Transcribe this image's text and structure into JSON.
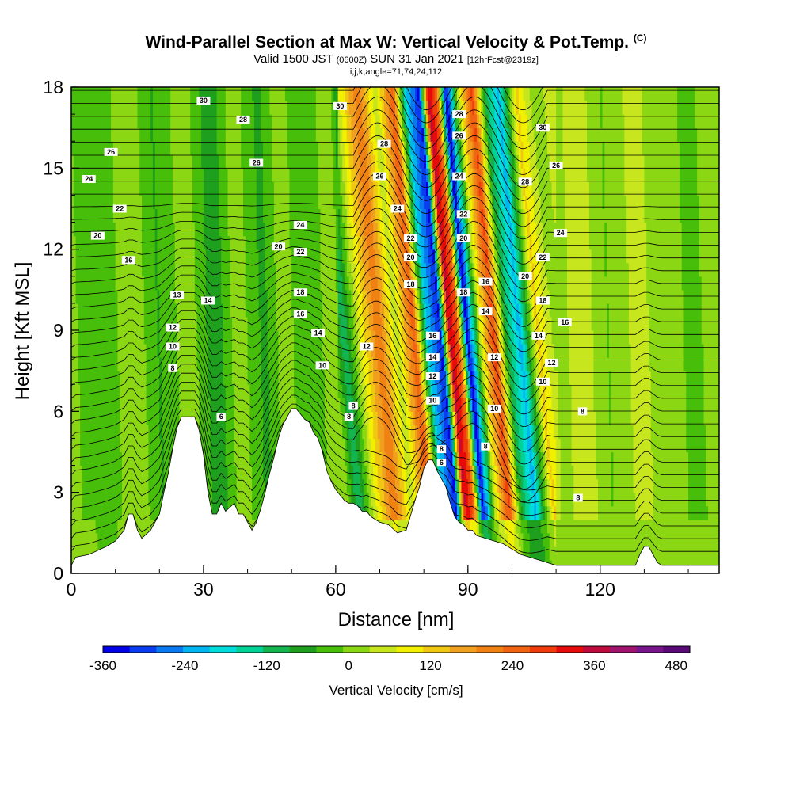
{
  "title": {
    "main": "Wind-Parallel Section at Max W: Vertical Velocity & Pot.Temp.",
    "copyright": "(C)",
    "valid_prefix": "Valid 1500 JST",
    "valid_utc": "(0600Z)",
    "valid_date": "SUN 31 Jan 2021",
    "forecast": "[12hrFcst@2319z]",
    "section_info": "i,j,k,angle=71,74,24,112"
  },
  "chart_data": {
    "type": "heatmap",
    "xlabel": "Distance [nm]",
    "ylabel": "Height [Kft MSL]",
    "xlim": [
      0,
      147
    ],
    "ylim": [
      0,
      18
    ],
    "x_ticks": [
      0,
      30,
      60,
      90,
      120
    ],
    "y_ticks": [
      0,
      3,
      6,
      9,
      12,
      15,
      18
    ],
    "x_tick_labels": [
      "0",
      "30",
      "60",
      "90",
      "120"
    ],
    "y_tick_labels": [
      "0",
      "3",
      "6",
      "9",
      "12",
      "15",
      "18"
    ],
    "colorbar": {
      "title": "Vertical Velocity [cm/s]",
      "min": -360,
      "max": 500,
      "tick_values": [
        -360,
        -240,
        -120,
        0,
        120,
        240,
        360,
        480
      ],
      "tick_labels": [
        "-360",
        "-240",
        "-120",
        "0",
        "120",
        "240",
        "360",
        "480"
      ],
      "colors": [
        "#0000e6",
        "#0a3cf0",
        "#0a78f0",
        "#00b4f0",
        "#00dcdc",
        "#00d296",
        "#14b450",
        "#1ea01e",
        "#46be0a",
        "#8cd714",
        "#c8e61e",
        "#f0f000",
        "#f0c814",
        "#f0a01e",
        "#f08214",
        "#f06414",
        "#f03c0a",
        "#e60a0a",
        "#be0a3c",
        "#a0146e",
        "#78148c",
        "#5a0a78"
      ]
    },
    "vertical_velocity_bands": [
      {
        "x": 0,
        "w": 0
      },
      {
        "x": 8,
        "w": -40
      },
      {
        "x": 14,
        "w": 30
      },
      {
        "x": 20,
        "w": -50
      },
      {
        "x": 27,
        "w": 20
      },
      {
        "x": 33,
        "w": -80
      },
      {
        "x": 38,
        "w": 20
      },
      {
        "x": 44,
        "w": -60
      },
      {
        "x": 48,
        "w": 10
      },
      {
        "x": 55,
        "w": -40
      },
      {
        "x": 60,
        "w": 30
      },
      {
        "x": 63,
        "w": -120
      },
      {
        "x": 67,
        "w": 80
      },
      {
        "x": 71,
        "w": 220
      },
      {
        "x": 75,
        "w": 40
      },
      {
        "x": 79,
        "w": 260
      },
      {
        "x": 82,
        "w": -200
      },
      {
        "x": 85,
        "w": -330
      },
      {
        "x": 87,
        "w": 360
      },
      {
        "x": 89,
        "w": 250
      },
      {
        "x": 91,
        "w": -360
      },
      {
        "x": 94,
        "w": 60
      },
      {
        "x": 97,
        "w": 280
      },
      {
        "x": 100,
        "w": -100
      },
      {
        "x": 103,
        "w": -220
      },
      {
        "x": 107,
        "w": 120
      },
      {
        "x": 111,
        "w": 10
      },
      {
        "x": 116,
        "w": 60
      },
      {
        "x": 122,
        "w": -10
      },
      {
        "x": 128,
        "w": 40
      },
      {
        "x": 135,
        "w": 20
      },
      {
        "x": 141,
        "w": -20
      },
      {
        "x": 147,
        "w": 10
      }
    ],
    "terrain": {
      "x": [
        0,
        1,
        4,
        8,
        10,
        12,
        13,
        14,
        15,
        16,
        18,
        20,
        21,
        22,
        23,
        24,
        25,
        28,
        29,
        30,
        31,
        32,
        33,
        34,
        35,
        37,
        38,
        39,
        40,
        41,
        42,
        43,
        44,
        45,
        46,
        47,
        48,
        49,
        50,
        51,
        52,
        53,
        54,
        55,
        56,
        57,
        58,
        59,
        60,
        61,
        62,
        63,
        64,
        65,
        66,
        67,
        68,
        70,
        72,
        74,
        76,
        78,
        79,
        80,
        81,
        82,
        83,
        84,
        85,
        86,
        87,
        88,
        89,
        90,
        91,
        92,
        94,
        96,
        98,
        100,
        102,
        104,
        106,
        108,
        110,
        114,
        118,
        122,
        126,
        128,
        129,
        130,
        131,
        132,
        133,
        134,
        135,
        136,
        140,
        147
      ],
      "h": [
        0.3,
        0.6,
        0.7,
        1.0,
        1.2,
        1.6,
        2.2,
        2.2,
        1.6,
        1.3,
        1.6,
        2.2,
        3.0,
        3.7,
        4.6,
        5.4,
        5.8,
        5.8,
        5.3,
        4.4,
        3.0,
        2.2,
        2.2,
        2.6,
        2.3,
        2.6,
        2.2,
        2.2,
        1.9,
        1.6,
        1.9,
        2.4,
        3.0,
        3.7,
        4.3,
        5.0,
        5.5,
        5.8,
        6.1,
        6.1,
        5.9,
        5.7,
        5.6,
        5.2,
        5.0,
        4.5,
        3.8,
        3.4,
        3.1,
        2.9,
        2.7,
        2.6,
        2.6,
        2.5,
        2.3,
        2.3,
        2.1,
        1.9,
        1.8,
        1.5,
        1.6,
        2.7,
        3.2,
        3.9,
        4.2,
        4.2,
        3.8,
        3.5,
        3.2,
        2.6,
        2.1,
        1.9,
        1.8,
        1.6,
        1.6,
        1.4,
        1.3,
        1.2,
        1.1,
        0.9,
        0.7,
        0.6,
        0.5,
        0.4,
        0.3,
        0.3,
        0.3,
        0.3,
        0.3,
        0.3,
        0.7,
        1.0,
        1.0,
        0.7,
        0.4,
        0.3,
        0.3,
        0.3,
        0.3,
        0.3
      ]
    },
    "theta_contours": [
      {
        "label": "6",
        "x": 34,
        "y": 5.8
      },
      {
        "label": "8",
        "x": 23,
        "y": 7.6
      },
      {
        "label": "10",
        "x": 23,
        "y": 8.4
      },
      {
        "label": "12",
        "x": 23,
        "y": 9.1
      },
      {
        "label": "13",
        "x": 24,
        "y": 10.3
      },
      {
        "label": "14",
        "x": 31,
        "y": 10.1
      },
      {
        "label": "16",
        "x": 13,
        "y": 11.6
      },
      {
        "label": "20",
        "x": 6,
        "y": 12.5
      },
      {
        "label": "22",
        "x": 11,
        "y": 13.5
      },
      {
        "label": "24",
        "x": 4,
        "y": 14.6
      },
      {
        "label": "26",
        "x": 9,
        "y": 15.6
      },
      {
        "label": "26",
        "x": 42,
        "y": 15.2
      },
      {
        "label": "28",
        "x": 39,
        "y": 16.8
      },
      {
        "label": "30",
        "x": 30,
        "y": 17.5
      },
      {
        "label": "30",
        "x": 61,
        "y": 17.3
      },
      {
        "label": "20",
        "x": 47,
        "y": 12.1
      },
      {
        "label": "22",
        "x": 52,
        "y": 11.9
      },
      {
        "label": "24",
        "x": 52,
        "y": 12.9
      },
      {
        "label": "18",
        "x": 52,
        "y": 10.4
      },
      {
        "label": "16",
        "x": 52,
        "y": 9.6
      },
      {
        "label": "14",
        "x": 56,
        "y": 8.9
      },
      {
        "label": "10",
        "x": 57,
        "y": 7.7
      },
      {
        "label": "8",
        "x": 64,
        "y": 6.2
      },
      {
        "label": "8",
        "x": 63,
        "y": 5.8
      },
      {
        "label": "12",
        "x": 67,
        "y": 8.4
      },
      {
        "label": "28",
        "x": 71,
        "y": 15.9
      },
      {
        "label": "26",
        "x": 70,
        "y": 14.7
      },
      {
        "label": "24",
        "x": 74,
        "y": 13.5
      },
      {
        "label": "22",
        "x": 77,
        "y": 12.4
      },
      {
        "label": "20",
        "x": 77,
        "y": 11.7
      },
      {
        "label": "18",
        "x": 77,
        "y": 10.7
      },
      {
        "label": "16",
        "x": 82,
        "y": 8.8
      },
      {
        "label": "14",
        "x": 82,
        "y": 8.0
      },
      {
        "label": "12",
        "x": 82,
        "y": 7.3
      },
      {
        "label": "10",
        "x": 82,
        "y": 6.4
      },
      {
        "label": "8",
        "x": 84,
        "y": 4.6
      },
      {
        "label": "6",
        "x": 84,
        "y": 4.1
      },
      {
        "label": "28",
        "x": 88,
        "y": 17.0
      },
      {
        "label": "26",
        "x": 88,
        "y": 16.2
      },
      {
        "label": "24",
        "x": 88,
        "y": 14.7
      },
      {
        "label": "22",
        "x": 89,
        "y": 13.3
      },
      {
        "label": "20",
        "x": 89,
        "y": 12.4
      },
      {
        "label": "18",
        "x": 89,
        "y": 10.4
      },
      {
        "label": "16",
        "x": 94,
        "y": 10.8
      },
      {
        "label": "14",
        "x": 94,
        "y": 9.7
      },
      {
        "label": "12",
        "x": 96,
        "y": 8.0
      },
      {
        "label": "10",
        "x": 96,
        "y": 6.1
      },
      {
        "label": "8",
        "x": 94,
        "y": 4.7
      },
      {
        "label": "30",
        "x": 107,
        "y": 16.5
      },
      {
        "label": "28",
        "x": 103,
        "y": 14.5
      },
      {
        "label": "26",
        "x": 110,
        "y": 15.1
      },
      {
        "label": "24",
        "x": 111,
        "y": 12.6
      },
      {
        "label": "22",
        "x": 107,
        "y": 11.7
      },
      {
        "label": "20",
        "x": 103,
        "y": 11.0
      },
      {
        "label": "18",
        "x": 107,
        "y": 10.1
      },
      {
        "label": "16",
        "x": 112,
        "y": 9.3
      },
      {
        "label": "14",
        "x": 106,
        "y": 8.8
      },
      {
        "label": "12",
        "x": 109,
        "y": 7.8
      },
      {
        "label": "10",
        "x": 107,
        "y": 7.1
      },
      {
        "label": "8",
        "x": 116,
        "y": 6.0
      },
      {
        "label": "8",
        "x": 115,
        "y": 2.8
      }
    ]
  }
}
